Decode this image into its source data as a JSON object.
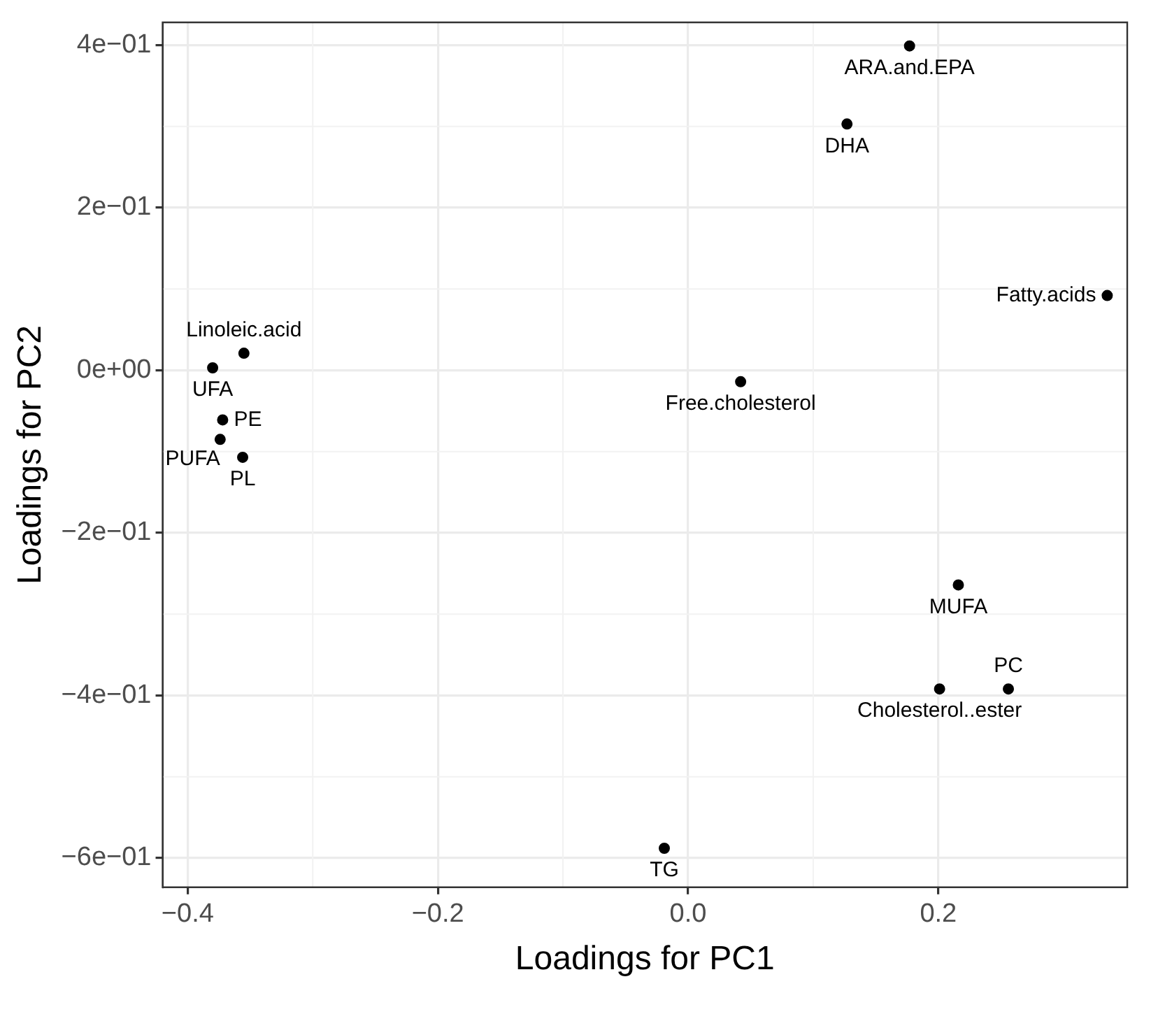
{
  "chart_data": {
    "type": "scatter",
    "xlabel": "Loadings for PC1",
    "ylabel": "Loadings for PC2",
    "x": [
      0.177,
      0.127,
      0.335,
      0.042,
      -0.355,
      -0.38,
      -0.372,
      -0.374,
      -0.356,
      0.216,
      0.201,
      0.256,
      -0.019
    ],
    "values": [
      0.399,
      0.303,
      0.092,
      -0.014,
      0.021,
      0.003,
      -0.061,
      -0.085,
      -0.107,
      -0.264,
      -0.392,
      -0.392,
      -0.588
    ],
    "color": "#000000",
    "marker": "circle",
    "grid": true,
    "legend": false,
    "xlim": [
      -0.42,
      0.351
    ],
    "xticks": [
      {
        "value": -0.4,
        "label": "−0.4"
      },
      {
        "value": -0.2,
        "label": "−0.2"
      },
      {
        "value": 0,
        "label": "0.0"
      },
      {
        "value": 0.2,
        "label": "0.2"
      }
    ],
    "ylim": [
      -0.636,
      0.428
    ],
    "yticks": [
      {
        "value": -0.6,
        "label": "−6e−01"
      },
      {
        "value": -0.4,
        "label": "−4e−01"
      },
      {
        "value": -0.2,
        "label": "−2e−01"
      },
      {
        "value": 0,
        "label": "0e+00"
      },
      {
        "value": 0.2,
        "label": "2e−01"
      },
      {
        "value": 0.4,
        "label": "4e−01"
      }
    ],
    "annotations": [
      {
        "text": "ARA.and.EPA",
        "x": 0.177,
        "y": 0.399
      },
      {
        "text": "DHA",
        "x": 0.127,
        "y": 0.303
      },
      {
        "text": "Fatty.acids",
        "x": 0.335,
        "y": 0.092
      },
      {
        "text": "Free.cholesterol",
        "x": 0.042,
        "y": -0.014
      },
      {
        "text": "Linoleic.acid",
        "x": -0.355,
        "y": 0.021
      },
      {
        "text": "UFA",
        "x": -0.38,
        "y": 0.003
      },
      {
        "text": "PE",
        "x": -0.372,
        "y": -0.061
      },
      {
        "text": "PUFA",
        "x": -0.374,
        "y": -0.085
      },
      {
        "text": "PL",
        "x": -0.356,
        "y": -0.107
      },
      {
        "text": "MUFA",
        "x": 0.216,
        "y": -0.264
      },
      {
        "text": "Cholesterol..ester",
        "x": 0.201,
        "y": -0.392
      },
      {
        "text": "PC",
        "x": 0.256,
        "y": -0.392
      },
      {
        "text": "TG",
        "x": -0.019,
        "y": -0.588
      }
    ]
  }
}
